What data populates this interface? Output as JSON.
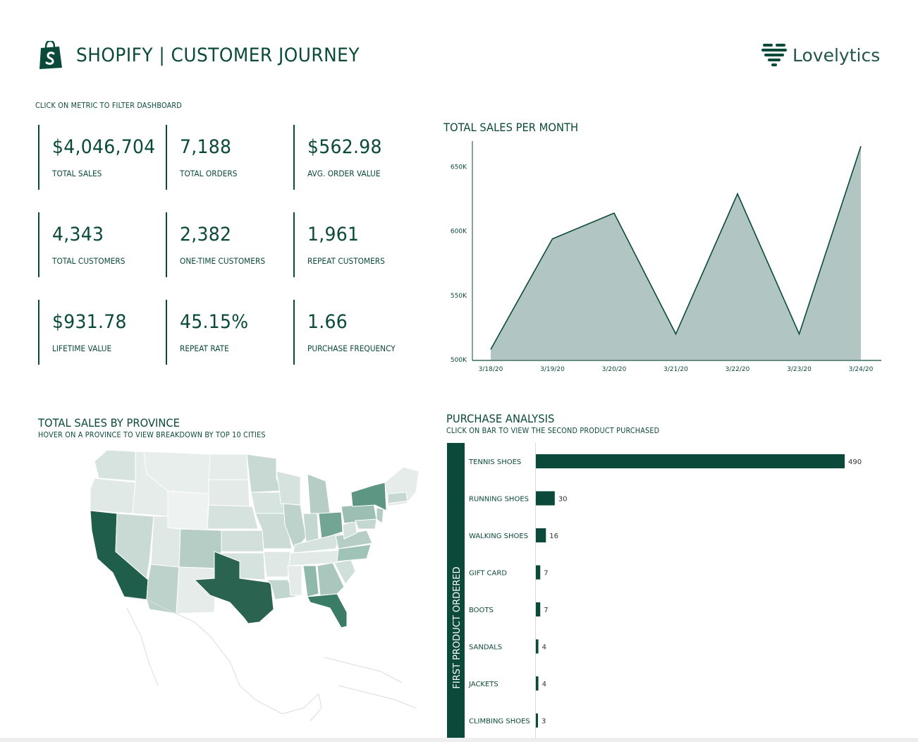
{
  "header": {
    "title": "SHOPIFY | CUSTOMER JOURNEY",
    "brand": "Lovelytics",
    "colors": {
      "primary": "#0b4a3a",
      "area_fill": "#b1c6c2"
    }
  },
  "kpi_section": {
    "hint": "CLICK ON METRIC TO FILTER DASHBOARD",
    "metrics": [
      {
        "value": "$4,046,704",
        "label": "TOTAL SALES"
      },
      {
        "value": "7,188",
        "label": "TOTAL ORDERS"
      },
      {
        "value": "$562.98",
        "label": "AVG. ORDER VALUE"
      },
      {
        "value": "4,343",
        "label": "TOTAL CUSTOMERS"
      },
      {
        "value": "2,382",
        "label": "ONE-TIME CUSTOMERS"
      },
      {
        "value": "1,961",
        "label": "REPEAT CUSTOMERS"
      },
      {
        "value": "$931.78",
        "label": "LIFETIME VALUE"
      },
      {
        "value": "45.15%",
        "label": "REPEAT RATE"
      },
      {
        "value": "1.66",
        "label": "PURCHASE FREQUENCY"
      }
    ]
  },
  "map_section": {
    "title": "TOTAL SALES BY PROVINCE",
    "subtitle": "HOVER ON A PROVINCE TO VIEW BREAKDOWN BY TOP 10 CITIES"
  },
  "bar_section": {
    "title": "PURCHASE ANALYSIS",
    "subtitle": "CLICK ON BAR TO VIEW THE SECOND PRODUCT PURCHASED",
    "axis_label": "FIRST PRODUCT ORDERED"
  },
  "chart_data": [
    {
      "type": "area",
      "title": "TOTAL SALES PER MONTH",
      "categories": [
        "3/18/20",
        "3/19/20",
        "3/20/20",
        "3/21/20",
        "3/22/20",
        "3/23/20",
        "3/24/20"
      ],
      "values": [
        508000,
        594000,
        614000,
        520000,
        629000,
        520000,
        666000
      ],
      "y_ticks": [
        "500K",
        "550K",
        "600K",
        "650K"
      ],
      "ylim": [
        500000,
        670000
      ],
      "grid": false
    },
    {
      "type": "bar",
      "orientation": "horizontal",
      "categories": [
        "TENNIS SHOES",
        "RUNNING SHOES",
        "WALKING SHOES",
        "GIFT CARD",
        "BOOTS",
        "SANDALS",
        "JACKETS",
        "CLIMBING SHOES"
      ],
      "values": [
        490,
        30,
        16,
        7,
        7,
        4,
        4,
        3
      ],
      "ylabel": "FIRST PRODUCT ORDERED",
      "grid": false
    }
  ]
}
